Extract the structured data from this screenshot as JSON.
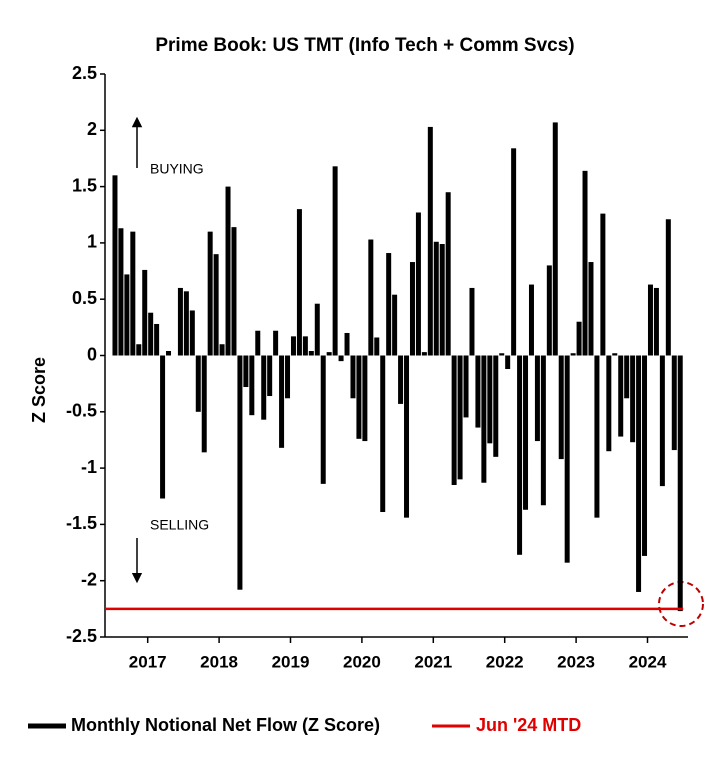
{
  "chart_data": {
    "type": "bar",
    "title": "Prime Book: US TMT (Info Tech + Comm Svcs)",
    "ylabel": "Z Score",
    "categories": [
      null,
      null,
      null,
      null,
      null,
      null,
      "2017",
      null,
      null,
      null,
      null,
      null,
      null,
      null,
      null,
      null,
      null,
      null,
      "2018",
      null,
      null,
      null,
      null,
      null,
      null,
      null,
      null,
      null,
      null,
      null,
      "2019",
      null,
      null,
      null,
      null,
      null,
      null,
      null,
      null,
      null,
      null,
      null,
      "2020",
      null,
      null,
      null,
      null,
      null,
      null,
      null,
      null,
      null,
      null,
      null,
      "2021",
      null,
      null,
      null,
      null,
      null,
      null,
      null,
      null,
      null,
      null,
      null,
      "2022",
      null,
      null,
      null,
      null,
      null,
      null,
      null,
      null,
      null,
      null,
      null,
      "2023",
      null,
      null,
      null,
      null,
      null,
      null,
      null,
      null,
      null,
      null,
      null,
      "2024",
      null,
      null,
      null,
      null,
      null
    ],
    "series": [
      {
        "name": "Monthly Notional Net Flow (Z Score)",
        "color": "#000000",
        "values": [
          1.6,
          1.13,
          0.72,
          1.1,
          0.1,
          0.76,
          0.38,
          0.28,
          -1.27,
          0.04,
          0,
          0.6,
          0.57,
          0.4,
          -0.5,
          -0.86,
          1.1,
          0.9,
          0.1,
          1.5,
          1.14,
          -2.08,
          -0.28,
          -0.53,
          0.22,
          -0.57,
          -0.36,
          0.22,
          -0.82,
          -0.38,
          0.17,
          1.3,
          0.17,
          0.04,
          0.46,
          -1.14,
          0.03,
          1.68,
          -0.05,
          0.2,
          -0.38,
          -0.74,
          -0.76,
          1.03,
          0.16,
          -1.39,
          0.91,
          0.54,
          -0.43,
          -1.44,
          0.83,
          1.27,
          0.03,
          2.03,
          1.01,
          0.99,
          1.45,
          -1.15,
          -1.1,
          -0.55,
          0.6,
          -0.64,
          -1.13,
          -0.78,
          -0.9,
          0.02,
          -0.12,
          1.84,
          -1.77,
          -1.37,
          0.63,
          -0.76,
          -1.33,
          0.8,
          2.07,
          -0.92,
          -1.84,
          0.02,
          0.3,
          1.64,
          0.83,
          -1.44,
          1.26,
          -0.85,
          0.02,
          -0.72,
          -0.38,
          -0.77,
          -2.1,
          -1.78,
          0.63,
          0.6,
          -1.16,
          1.21,
          -0.84,
          -2.27
        ]
      }
    ],
    "reference_line": {
      "name": "Jun '24 MTD",
      "value": -2.25,
      "color": "#e00000"
    },
    "annotations": [
      "BUYING",
      "SELLING"
    ],
    "ylim": [
      -2.5,
      2.5
    ],
    "yticks": [
      2.5,
      2,
      1.5,
      1,
      0.5,
      0,
      -0.5,
      -1,
      -1.5,
      -2,
      -2.5
    ],
    "grid": false,
    "legend": "bottom"
  }
}
